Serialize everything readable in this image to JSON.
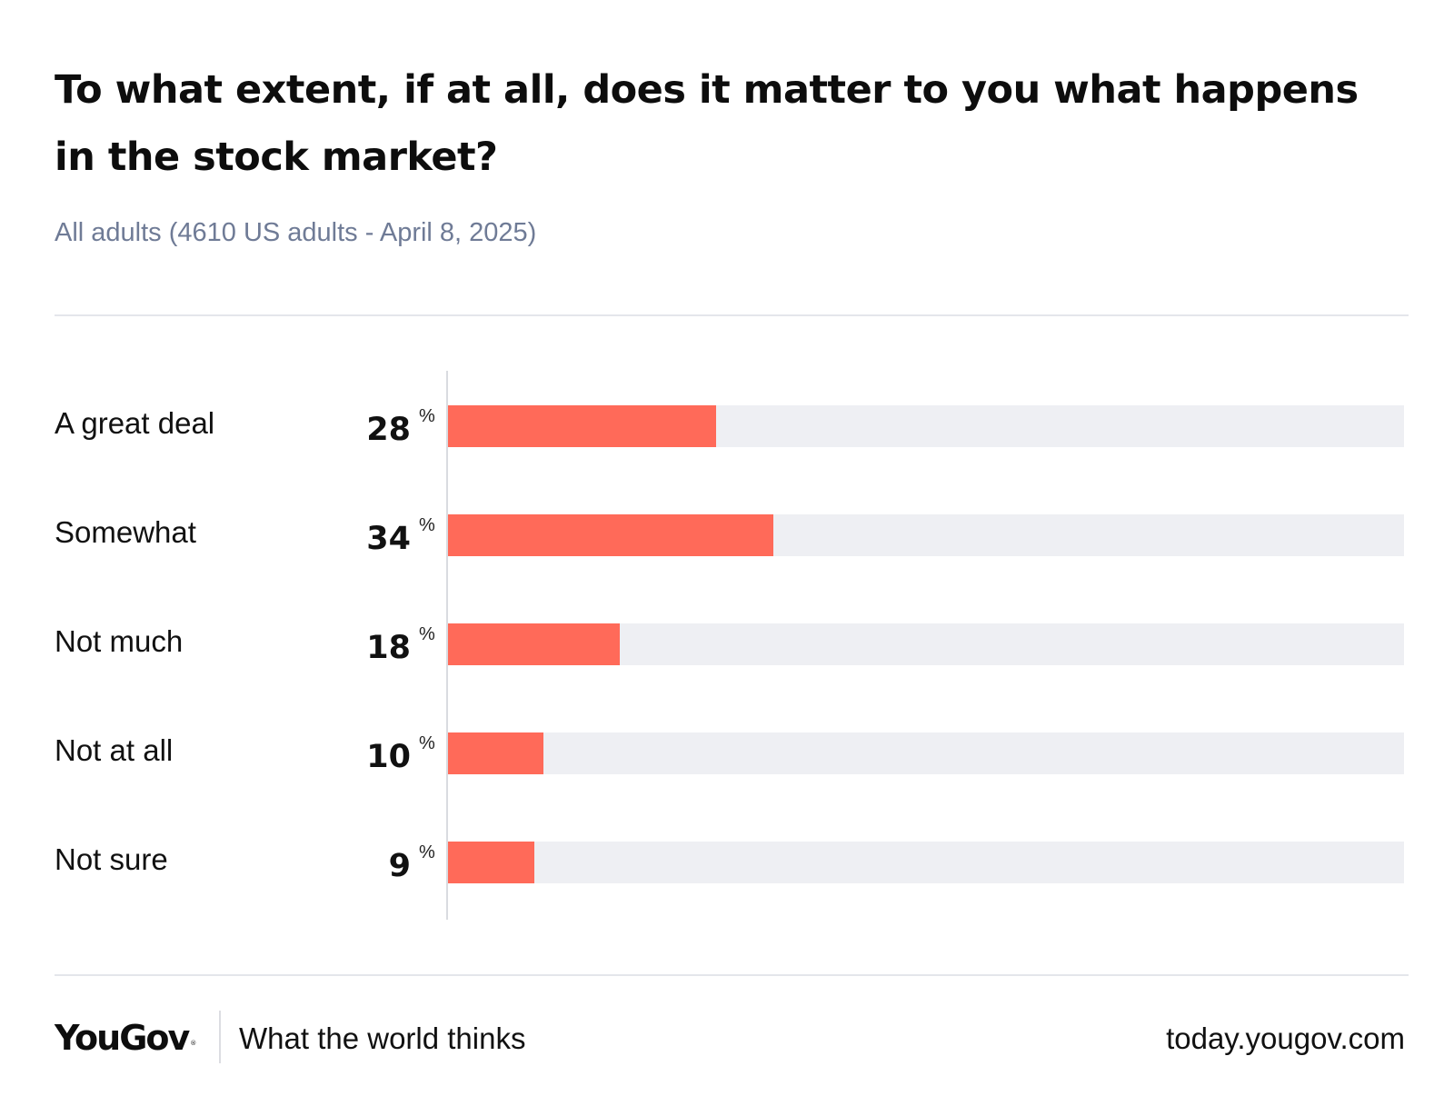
{
  "header": {
    "title": "To what extent, if at all, does it matter to you what happens in the stock market?",
    "subtitle": "All adults (4610 US adults - April 8, 2025)"
  },
  "chart_data": {
    "type": "bar",
    "orientation": "horizontal",
    "title": "To what extent, if at all, does it matter to you what happens in the stock market?",
    "subtitle": "All adults (4610 US adults - April 8, 2025)",
    "categories": [
      "A great deal",
      "Somewhat",
      "Not much",
      "Not at all",
      "Not sure"
    ],
    "values": [
      28,
      34,
      18,
      10,
      9
    ],
    "unit": "%",
    "xlim": [
      0,
      100
    ],
    "xlabel": "",
    "ylabel": "",
    "grid": false,
    "colors": {
      "bar": "#ff6a59",
      "track": "#eeeff3"
    }
  },
  "footer": {
    "brand": "YouGov",
    "brand_mark": "®",
    "tagline": "What the world thinks",
    "url": "today.yougov.com"
  }
}
